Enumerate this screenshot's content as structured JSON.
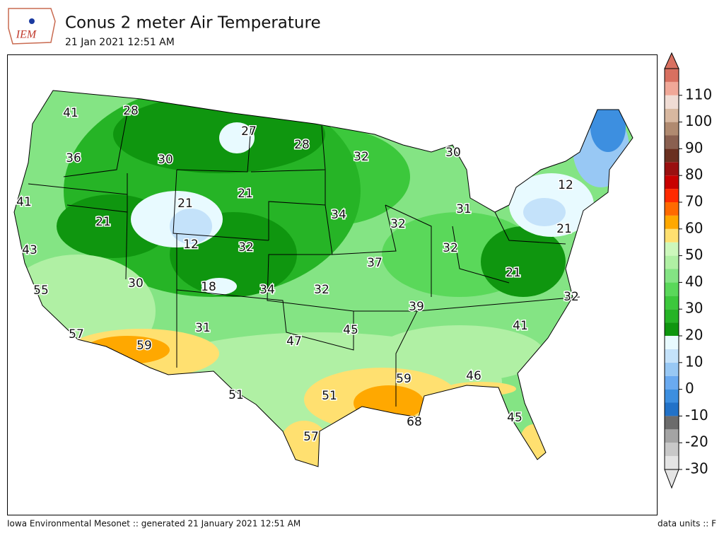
{
  "header": {
    "logo": "IEM",
    "title": "Conus 2 meter Air Temperature",
    "subtitle": "21 Jan 2021 12:51 AM"
  },
  "map": {
    "labels": [
      41,
      28,
      27,
      28,
      32,
      30,
      36,
      30,
      21,
      21,
      12,
      41,
      21,
      34,
      32,
      31,
      12,
      32,
      21,
      43,
      32,
      37,
      21,
      55,
      30,
      18,
      34,
      32,
      32,
      39,
      31,
      45,
      41,
      57,
      47,
      59,
      46,
      59,
      51,
      51,
      68,
      45,
      57
    ]
  },
  "colorbar": {
    "lim": [
      -30,
      120
    ],
    "ticks": [
      -30,
      -20,
      -10,
      0,
      10,
      20,
      30,
      40,
      50,
      60,
      70,
      80,
      90,
      100,
      110
    ],
    "colors": [
      "#e4e4e4",
      "#c8c8c8",
      "#a4a4a4",
      "#6c6c6c",
      "#2272c8",
      "#3d8fe0",
      "#6aaaf0",
      "#98c8f4",
      "#c4e2fa",
      "#e8faff",
      "#0f960f",
      "#26b426",
      "#3cc83c",
      "#5ad85a",
      "#84e484",
      "#b0f0a4",
      "#cdf8bc",
      "#ffe070",
      "#ffa800",
      "#ff6a00",
      "#ff2a00",
      "#c80000",
      "#9a1010",
      "#6a3020",
      "#8a6050",
      "#b08a70",
      "#d8b8a0",
      "#f0dcd4",
      "#f0a898",
      "#d87060"
    ]
  },
  "footer": {
    "left": "Iowa Environmental Mesonet :: generated 21 January 2021 12:51 AM",
    "right": "data units :: F"
  }
}
